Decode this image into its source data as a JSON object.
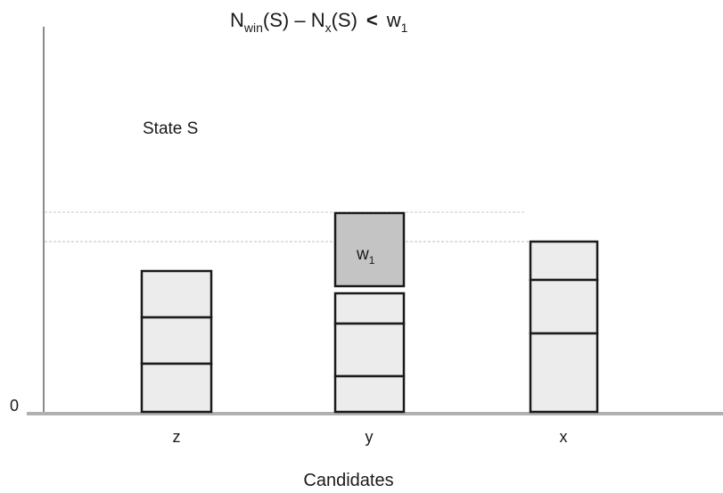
{
  "title": {
    "n1": "N",
    "win_sub": "win",
    "s1": "(S) – N",
    "x_sub": "x",
    "s2": "(S)",
    "lt": "<",
    "w": "w",
    "one_sub": "1"
  },
  "state_label": "State S",
  "zero_label": "0",
  "x_axis_title": "Candidates",
  "candidates": [
    {
      "label": "z",
      "blocks": 3
    },
    {
      "label": "y",
      "blocks": 3,
      "extra_block": {
        "label_main": "w",
        "label_sub": "1"
      }
    },
    {
      "label": "x",
      "blocks": 3
    }
  ],
  "colors": {
    "block_fill": "#ececec",
    "highlight_fill": "#c4c4c4",
    "outline": "#1a1a1a",
    "guide_line": "#bdbdbd",
    "axis": "#8a8a8a"
  }
}
